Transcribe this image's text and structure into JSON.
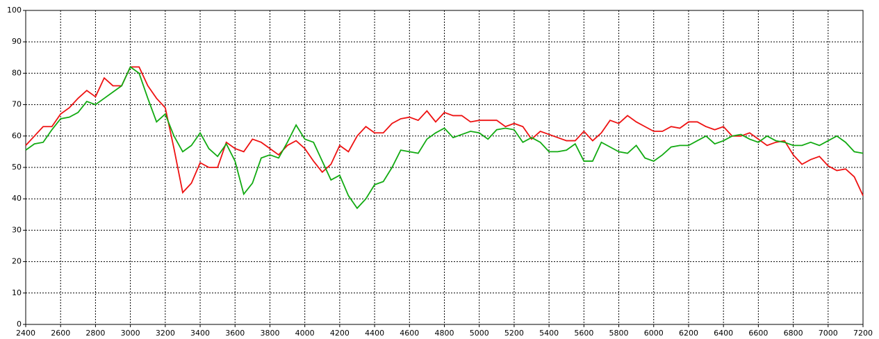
{
  "chart_data": {
    "type": "line",
    "x": [
      2400,
      2450,
      2500,
      2550,
      2600,
      2650,
      2700,
      2750,
      2800,
      2850,
      2900,
      2950,
      3000,
      3050,
      3100,
      3150,
      3200,
      3250,
      3300,
      3350,
      3400,
      3450,
      3500,
      3550,
      3600,
      3650,
      3700,
      3750,
      3800,
      3850,
      3900,
      3950,
      4000,
      4050,
      4100,
      4150,
      4200,
      4250,
      4300,
      4350,
      4400,
      4450,
      4500,
      4550,
      4600,
      4650,
      4700,
      4750,
      4800,
      4850,
      4900,
      4950,
      5000,
      5050,
      5100,
      5150,
      5200,
      5250,
      5300,
      5350,
      5400,
      5450,
      5500,
      5550,
      5600,
      5650,
      5700,
      5750,
      5800,
      5850,
      5900,
      5950,
      6000,
      6050,
      6100,
      6150,
      6200,
      6250,
      6300,
      6350,
      6400,
      6450,
      6500,
      6550,
      6600,
      6650,
      6700,
      6750,
      6800,
      6850,
      6900,
      6950,
      7000,
      7050,
      7100,
      7150,
      7200
    ],
    "series": [
      {
        "color": "#ee1111",
        "values": [
          57,
          60,
          63,
          63,
          67,
          69,
          72,
          74.5,
          72.5,
          78.5,
          76,
          76,
          82,
          82,
          76,
          72,
          69,
          56,
          42,
          45,
          51.5,
          50,
          50,
          58,
          56,
          55,
          59,
          58,
          56,
          54,
          57,
          58.5,
          56,
          52,
          48.5,
          51,
          57,
          55,
          60,
          63,
          61,
          61,
          64,
          65.5,
          66,
          65,
          68,
          64.5,
          67.5,
          66.5,
          66.5,
          64.5,
          65,
          65,
          65,
          63,
          64,
          63,
          59,
          61.5,
          60.5,
          59.5,
          58.5,
          58.5,
          61.5,
          58.5,
          61,
          65,
          64,
          66.5,
          64.5,
          63,
          61.5,
          61.5,
          63,
          62.5,
          64.5,
          64.5,
          63,
          62,
          63,
          60,
          60,
          61,
          59,
          57,
          58,
          58.5,
          54,
          51,
          52.5,
          53.5,
          50.5,
          49,
          49.5,
          47,
          41
        ]
      },
      {
        "color": "#11aa11",
        "values": [
          55.5,
          57.5,
          58,
          62,
          65.5,
          66,
          67.5,
          71,
          70,
          72,
          74,
          76,
          82,
          80,
          72,
          64.5,
          67,
          60,
          55,
          57,
          61,
          56,
          53.5,
          57.5,
          52,
          41.5,
          45,
          53,
          54,
          53,
          58,
          63.5,
          59,
          58,
          52,
          46,
          47.5,
          41,
          37,
          40,
          44.5,
          45.5,
          50,
          55.5,
          55,
          54.5,
          59,
          61,
          62.5,
          59.5,
          60.5,
          61.5,
          61,
          59,
          62,
          62.5,
          62,
          58,
          59.5,
          58,
          55,
          55,
          55.5,
          57.5,
          52,
          52,
          58,
          56.5,
          55,
          54.5,
          57,
          53,
          52,
          54,
          56.5,
          57,
          57,
          58.5,
          60,
          57.5,
          58.5,
          60,
          60.5,
          59,
          58,
          60,
          58.5,
          58,
          57,
          57,
          58,
          57,
          58.5,
          60,
          58,
          55,
          54.5
        ]
      }
    ],
    "xlim": [
      2400,
      7200
    ],
    "xticks": [
      2400,
      2600,
      2800,
      3000,
      3200,
      3400,
      3600,
      3800,
      4000,
      4200,
      4400,
      4600,
      4800,
      5000,
      5200,
      5400,
      5600,
      5800,
      6000,
      6200,
      6400,
      6600,
      6800,
      7000,
      7200
    ],
    "ylim": [
      0,
      100
    ],
    "yticks": [
      0,
      10,
      20,
      30,
      40,
      50,
      60,
      70,
      80,
      90,
      100
    ],
    "grid": true
  }
}
